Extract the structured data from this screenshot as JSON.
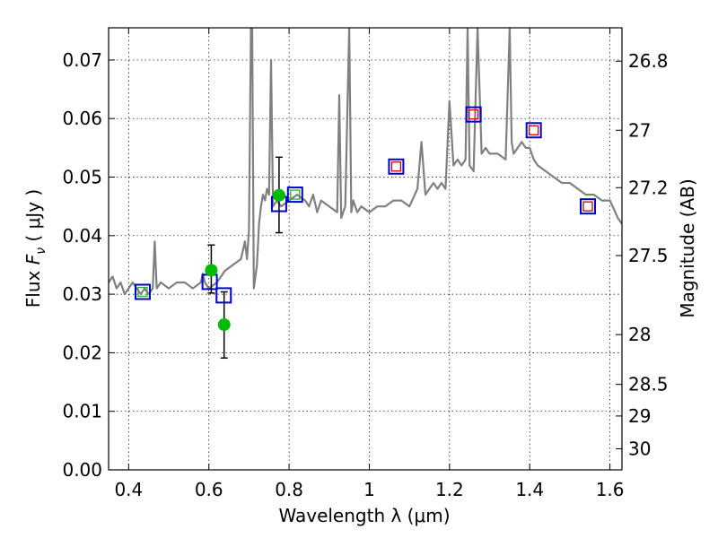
{
  "chart_data": {
    "type": "scatter",
    "xlabel": "Wavelength  λ (μm)",
    "ylabel_left": {
      "text": "Flux ",
      "math": "F",
      "sub": "ν",
      "rest": "  ( μJy )"
    },
    "ylabel_right": "Magnitude (AB)",
    "xlim": [
      0.35,
      1.63
    ],
    "ylim": [
      0.0,
      0.0755
    ],
    "grid": true,
    "x_ticks": [
      0.4,
      0.6,
      0.8,
      1.0,
      1.2,
      1.4,
      1.6
    ],
    "x_tick_labels": [
      "0.4",
      "0.6",
      "0.8",
      "1",
      "1.2",
      "1.4",
      "1.6"
    ],
    "y_ticks": [
      0.0,
      0.01,
      0.02,
      0.03,
      0.04,
      0.05,
      0.06,
      0.07
    ],
    "y_tick_labels": [
      "0.00",
      "0.01",
      "0.02",
      "0.03",
      "0.04",
      "0.05",
      "0.06",
      "0.07"
    ],
    "right_ticks": [
      {
        "label": "26.8",
        "flux": 0.0698
      },
      {
        "label": "27",
        "flux": 0.058
      },
      {
        "label": "27.2",
        "flux": 0.0482
      },
      {
        "label": "27.5",
        "flux": 0.0366
      },
      {
        "label": "28",
        "flux": 0.0231
      },
      {
        "label": "28.5",
        "flux": 0.0146
      },
      {
        "label": "29",
        "flux": 0.0092
      },
      {
        "label": "30",
        "flux": 0.0036
      }
    ],
    "series": [
      {
        "kind": "line",
        "color": "#808080",
        "x": [
          0.35,
          0.36,
          0.37,
          0.38,
          0.39,
          0.4,
          0.41,
          0.42,
          0.43,
          0.44,
          0.45,
          0.46,
          0.465,
          0.47,
          0.48,
          0.5,
          0.52,
          0.54,
          0.56,
          0.58,
          0.585,
          0.59,
          0.6,
          0.62,
          0.64,
          0.66,
          0.68,
          0.69,
          0.695,
          0.7,
          0.705,
          0.708,
          0.712,
          0.72,
          0.725,
          0.73,
          0.735,
          0.74,
          0.745,
          0.75,
          0.755,
          0.76,
          0.77,
          0.78,
          0.8,
          0.82,
          0.84,
          0.85,
          0.86,
          0.87,
          0.88,
          0.9,
          0.92,
          0.925,
          0.93,
          0.94,
          0.95,
          0.955,
          0.96,
          0.97,
          0.98,
          1.0,
          1.02,
          1.04,
          1.06,
          1.08,
          1.1,
          1.12,
          1.13,
          1.14,
          1.15,
          1.16,
          1.17,
          1.18,
          1.19,
          1.2,
          1.21,
          1.22,
          1.23,
          1.24,
          1.245,
          1.25,
          1.26,
          1.27,
          1.28,
          1.29,
          1.3,
          1.32,
          1.34,
          1.35,
          1.355,
          1.36,
          1.37,
          1.38,
          1.39,
          1.4,
          1.41,
          1.42,
          1.44,
          1.46,
          1.48,
          1.5,
          1.52,
          1.54,
          1.56,
          1.58,
          1.6,
          1.62,
          1.63
        ],
        "y": [
          0.032,
          0.033,
          0.031,
          0.032,
          0.03,
          0.031,
          0.032,
          0.031,
          0.03,
          0.031,
          0.03,
          0.031,
          0.039,
          0.031,
          0.032,
          0.031,
          0.032,
          0.032,
          0.031,
          0.032,
          0.0335,
          0.032,
          0.031,
          0.032,
          0.034,
          0.035,
          0.036,
          0.039,
          0.036,
          0.041,
          0.0755,
          0.0755,
          0.031,
          0.035,
          0.042,
          0.045,
          0.047,
          0.046,
          0.048,
          0.047,
          0.07,
          0.045,
          0.046,
          0.045,
          0.046,
          0.047,
          0.046,
          0.045,
          0.047,
          0.044,
          0.046,
          0.045,
          0.044,
          0.064,
          0.043,
          0.045,
          0.0755,
          0.044,
          0.046,
          0.044,
          0.045,
          0.044,
          0.045,
          0.045,
          0.046,
          0.046,
          0.045,
          0.048,
          0.056,
          0.047,
          0.048,
          0.049,
          0.048,
          0.049,
          0.048,
          0.063,
          0.052,
          0.053,
          0.052,
          0.053,
          0.0755,
          0.052,
          0.051,
          0.0755,
          0.054,
          0.055,
          0.054,
          0.054,
          0.053,
          0.0755,
          0.056,
          0.054,
          0.055,
          0.056,
          0.055,
          0.055,
          0.053,
          0.052,
          0.051,
          0.05,
          0.049,
          0.049,
          0.048,
          0.047,
          0.047,
          0.046,
          0.046,
          0.043,
          0.042
        ]
      },
      {
        "kind": "square",
        "color": "#0000cc",
        "x": [
          0.435,
          0.602,
          0.637,
          0.775,
          0.815,
          1.067,
          1.26,
          1.41,
          1.545
        ],
        "y": [
          0.0304,
          0.0321,
          0.0298,
          0.0454,
          0.047,
          0.0518,
          0.0607,
          0.058,
          0.045
        ]
      },
      {
        "kind": "small-square",
        "color": "#33aa33",
        "x": [
          0.435,
          0.815
        ],
        "y": [
          0.0304,
          0.047
        ]
      },
      {
        "kind": "small-square",
        "color": "#cc0000",
        "x": [
          1.067,
          1.26,
          1.41,
          1.545
        ],
        "y": [
          0.0518,
          0.0607,
          0.058,
          0.045
        ]
      },
      {
        "kind": "points-with-errors",
        "color": "#00bb00",
        "x": [
          0.606,
          0.638,
          0.775
        ],
        "y": [
          0.0341,
          0.0248,
          0.0469
        ],
        "err_low": [
          0.0302,
          0.0191,
          0.0405
        ],
        "err_high": [
          0.0384,
          0.0304,
          0.0534
        ]
      }
    ]
  }
}
